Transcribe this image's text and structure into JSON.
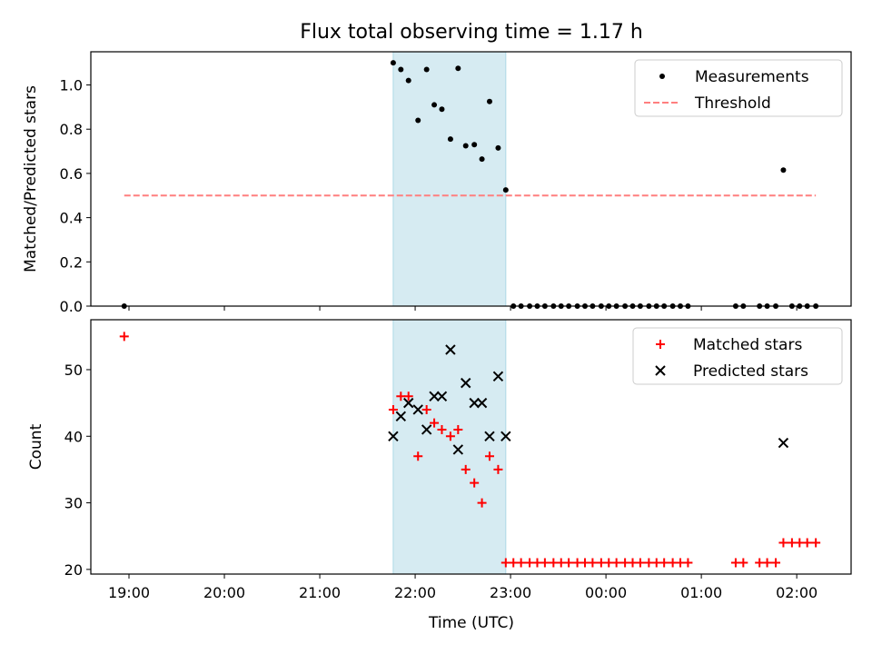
{
  "chart_data": {
    "title": "Flux total observing time = 1.17 h",
    "shared_x": {
      "label": "Time (UTC)",
      "unit": "hours since 19:00 UTC",
      "ticks": [
        {
          "v": 0,
          "label": "19:00"
        },
        {
          "v": 1,
          "label": "20:00"
        },
        {
          "v": 2,
          "label": "21:00"
        },
        {
          "v": 3,
          "label": "22:00"
        },
        {
          "v": 4,
          "label": "23:00"
        },
        {
          "v": 5,
          "label": "00:00"
        },
        {
          "v": 6,
          "label": "01:00"
        },
        {
          "v": 7,
          "label": "02:00"
        }
      ],
      "xlim": [
        -0.4,
        7.57
      ]
    },
    "highlight_span": {
      "x0": 2.77,
      "x1": 3.95,
      "color": "#add8e6"
    },
    "panels": [
      {
        "type": "scatter",
        "ylabel": "Matched/Predicted stars",
        "ylim": [
          0,
          1.15
        ],
        "yticks": [
          "0.0",
          "0.2",
          "0.4",
          "0.6",
          "0.8",
          "1.0"
        ],
        "legend": {
          "position": "top-right",
          "entries": [
            "Measurements",
            "Threshold"
          ]
        },
        "series": [
          {
            "name": "Measurements",
            "marker": "dot",
            "color": "#000000",
            "points": [
              [
                -0.05,
                0
              ],
              [
                2.77,
                1.1
              ],
              [
                2.85,
                1.07
              ],
              [
                2.93,
                1.02
              ],
              [
                3.03,
                0.84
              ],
              [
                3.12,
                1.07
              ],
              [
                3.2,
                0.91
              ],
              [
                3.28,
                0.89
              ],
              [
                3.37,
                0.755
              ],
              [
                3.45,
                1.075
              ],
              [
                3.53,
                0.725
              ],
              [
                3.62,
                0.73
              ],
              [
                3.7,
                0.665
              ],
              [
                3.78,
                0.925
              ],
              [
                3.87,
                0.715
              ],
              [
                3.95,
                0.525
              ],
              [
                4.03,
                0
              ],
              [
                4.11,
                0
              ],
              [
                4.2,
                0
              ],
              [
                4.28,
                0
              ],
              [
                4.36,
                0
              ],
              [
                4.45,
                0
              ],
              [
                4.53,
                0
              ],
              [
                4.61,
                0
              ],
              [
                4.7,
                0
              ],
              [
                4.78,
                0
              ],
              [
                4.86,
                0
              ],
              [
                4.95,
                0
              ],
              [
                5.03,
                0
              ],
              [
                5.11,
                0
              ],
              [
                5.2,
                0
              ],
              [
                5.28,
                0
              ],
              [
                5.36,
                0
              ],
              [
                5.45,
                0
              ],
              [
                5.53,
                0
              ],
              [
                5.61,
                0
              ],
              [
                5.7,
                0
              ],
              [
                5.78,
                0
              ],
              [
                5.86,
                0
              ],
              [
                6.36,
                0
              ],
              [
                6.44,
                0
              ],
              [
                6.61,
                0
              ],
              [
                6.69,
                0
              ],
              [
                6.78,
                0
              ],
              [
                6.86,
                0.615
              ],
              [
                6.95,
                0
              ],
              [
                7.03,
                0
              ],
              [
                7.11,
                0
              ],
              [
                7.2,
                0
              ]
            ]
          },
          {
            "name": "Threshold",
            "style": "dashed",
            "color": "#ff7f7f",
            "line": [
              [
                -0.05,
                0.5
              ],
              [
                7.2,
                0.5
              ]
            ]
          }
        ]
      },
      {
        "type": "scatter",
        "ylabel": "Count",
        "ylim": [
          19.3,
          57.5
        ],
        "yticks": [
          "20",
          "30",
          "40",
          "50"
        ],
        "legend": {
          "position": "top-right",
          "entries": [
            "Matched stars",
            "Predicted stars"
          ]
        },
        "series": [
          {
            "name": "Matched stars",
            "marker": "plus",
            "color": "#ff0000",
            "points": [
              [
                -0.05,
                55
              ],
              [
                2.77,
                44
              ],
              [
                2.85,
                46
              ],
              [
                2.93,
                46
              ],
              [
                3.03,
                37
              ],
              [
                3.12,
                44
              ],
              [
                3.2,
                42
              ],
              [
                3.28,
                41
              ],
              [
                3.37,
                40
              ],
              [
                3.45,
                41
              ],
              [
                3.53,
                35
              ],
              [
                3.62,
                33
              ],
              [
                3.7,
                30
              ],
              [
                3.78,
                37
              ],
              [
                3.87,
                35
              ],
              [
                3.95,
                21
              ],
              [
                4.03,
                21
              ],
              [
                4.11,
                21
              ],
              [
                4.2,
                21
              ],
              [
                4.28,
                21
              ],
              [
                4.36,
                21
              ],
              [
                4.45,
                21
              ],
              [
                4.53,
                21
              ],
              [
                4.61,
                21
              ],
              [
                4.7,
                21
              ],
              [
                4.78,
                21
              ],
              [
                4.86,
                21
              ],
              [
                4.95,
                21
              ],
              [
                5.03,
                21
              ],
              [
                5.11,
                21
              ],
              [
                5.2,
                21
              ],
              [
                5.28,
                21
              ],
              [
                5.36,
                21
              ],
              [
                5.45,
                21
              ],
              [
                5.53,
                21
              ],
              [
                5.61,
                21
              ],
              [
                5.7,
                21
              ],
              [
                5.78,
                21
              ],
              [
                5.86,
                21
              ],
              [
                6.36,
                21
              ],
              [
                6.44,
                21
              ],
              [
                6.61,
                21
              ],
              [
                6.69,
                21
              ],
              [
                6.78,
                21
              ],
              [
                6.86,
                24
              ],
              [
                6.95,
                24
              ],
              [
                7.03,
                24
              ],
              [
                7.11,
                24
              ],
              [
                7.2,
                24
              ]
            ]
          },
          {
            "name": "Predicted stars",
            "marker": "x",
            "color": "#000000",
            "points": [
              [
                2.77,
                40
              ],
              [
                2.85,
                43
              ],
              [
                2.93,
                45
              ],
              [
                3.03,
                44
              ],
              [
                3.12,
                41
              ],
              [
                3.2,
                46
              ],
              [
                3.28,
                46
              ],
              [
                3.37,
                53
              ],
              [
                3.45,
                38
              ],
              [
                3.53,
                48
              ],
              [
                3.62,
                45
              ],
              [
                3.7,
                45
              ],
              [
                3.78,
                40
              ],
              [
                3.87,
                49
              ],
              [
                3.95,
                40
              ],
              [
                6.86,
                39
              ]
            ]
          }
        ]
      }
    ]
  }
}
